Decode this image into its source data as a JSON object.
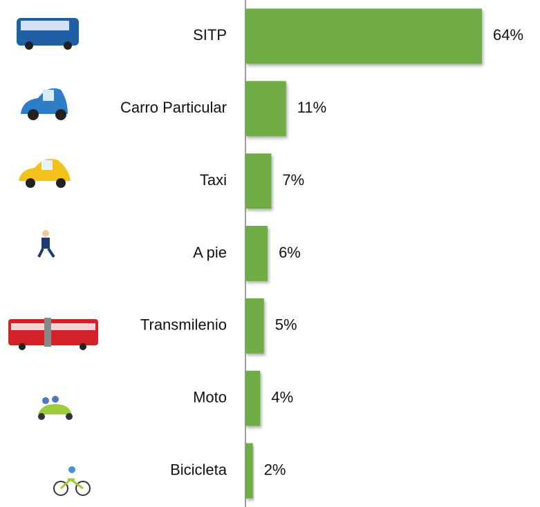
{
  "chart_data": {
    "type": "hbar",
    "categories": [
      "SITP",
      "Carro Particular",
      "Taxi",
      "A pie",
      "Transmilenio",
      "Moto",
      "Bicicleta"
    ],
    "values": [
      64,
      11,
      7,
      6,
      5,
      4,
      2
    ],
    "value_labels": [
      "64%",
      "11%",
      "7%",
      "6%",
      "5%",
      "4%",
      "2%"
    ],
    "color": "#70ad47"
  }
}
